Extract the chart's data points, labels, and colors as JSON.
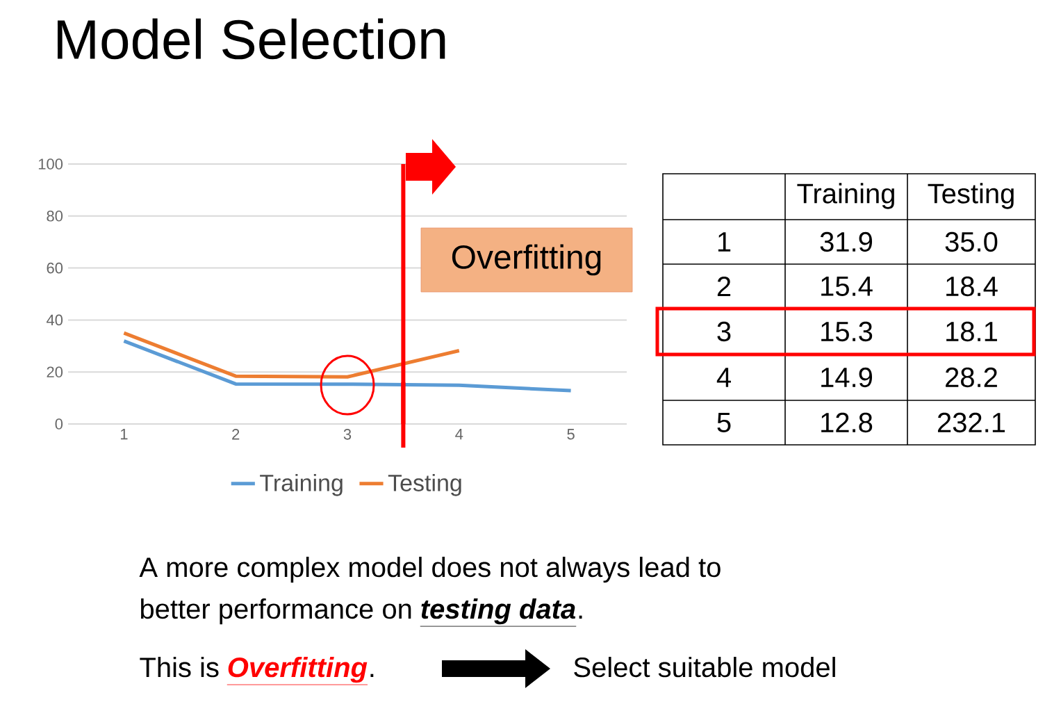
{
  "chart_data": {
    "type": "line",
    "title": "Model Selection",
    "x": [
      1,
      2,
      3,
      4,
      5
    ],
    "xlim": [
      0.5,
      5.5
    ],
    "xticks": [
      1,
      2,
      3,
      4,
      5
    ],
    "ylim": [
      0,
      100
    ],
    "yticks": [
      0,
      20,
      40,
      60,
      80,
      100
    ],
    "grid": "y",
    "legend": "bottom",
    "series": [
      {
        "name": "Training",
        "color": "#5b9bd5",
        "values": [
          31.9,
          15.4,
          15.3,
          14.9,
          12.8
        ]
      },
      {
        "name": "Testing",
        "color": "#ed7d31",
        "values": [
          35.0,
          18.4,
          18.1,
          28.2,
          null
        ]
      }
    ],
    "ref_lines": [
      {
        "axis": "x",
        "value": 3.5,
        "color": "#ff0000"
      }
    ],
    "annotations": [
      "Overfitting",
      "A more complex model does not always lead to",
      "better performance on",
      "testing data",
      ".",
      "This is",
      "Overfitting",
      ".",
      "Select suitable model",
      "1",
      "31.9",
      "35.0",
      "2",
      "15.4",
      "18.4",
      "3",
      "15.3",
      "18.1",
      "4",
      "14.9",
      "28.2",
      "5",
      "12.8",
      "232.1"
    ]
  }
}
